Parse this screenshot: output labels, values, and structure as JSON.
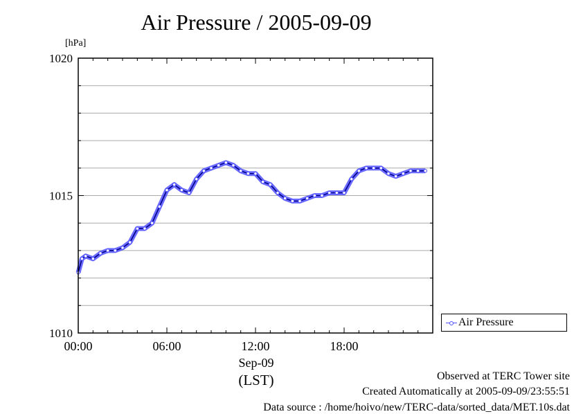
{
  "title": "Air Pressure / 2005-09-09",
  "unit": "[hPa]",
  "x_date_label": "Sep-09",
  "x_tz_label": "(LST)",
  "legend": {
    "label": "Air Pressure"
  },
  "footer": {
    "observed": "Observed at TERC Tower site",
    "created": "Created Automatically at 2005-09-09/23:55:51",
    "source": "Data source : /home/hoivo/new/TERC-data/sorted_data/MET.10s.dat"
  },
  "colors": {
    "series": "#5050ff",
    "core": "#000088",
    "grid": "#aaaaaa"
  },
  "chart_data": {
    "type": "line",
    "title": "Air Pressure / 2005-09-09",
    "ylabel": "[hPa]",
    "xlabel": "(LST)",
    "ylim": [
      1010,
      1020
    ],
    "xlim": [
      0,
      24
    ],
    "yticks": [
      1010,
      1015,
      1020
    ],
    "ytick_labels": [
      "1010",
      "1015",
      "1020"
    ],
    "xticks": [
      0,
      6,
      12,
      18
    ],
    "xtick_labels": [
      "00:00",
      "06:00",
      "12:00",
      "18:00"
    ],
    "grid": true,
    "legend_position": "right",
    "series": [
      {
        "name": "Air Pressure",
        "x": [
          0.0,
          0.25,
          0.5,
          1.0,
          1.5,
          2.0,
          2.5,
          3.0,
          3.5,
          4.0,
          4.5,
          5.0,
          5.5,
          6.0,
          6.5,
          7.0,
          7.5,
          8.0,
          8.5,
          9.0,
          9.5,
          10.0,
          10.5,
          11.0,
          11.5,
          12.0,
          12.5,
          13.0,
          13.5,
          14.0,
          14.5,
          15.0,
          15.5,
          16.0,
          16.5,
          17.0,
          17.5,
          18.0,
          18.5,
          19.0,
          19.5,
          20.0,
          20.5,
          21.0,
          21.5,
          22.0,
          22.5,
          23.0,
          23.5
        ],
        "y": [
          1012.2,
          1012.7,
          1012.8,
          1012.7,
          1012.9,
          1013.0,
          1013.0,
          1013.1,
          1013.3,
          1013.8,
          1013.8,
          1014.0,
          1014.6,
          1015.2,
          1015.4,
          1015.2,
          1015.1,
          1015.6,
          1015.9,
          1016.0,
          1016.1,
          1016.2,
          1016.1,
          1015.9,
          1015.8,
          1015.8,
          1015.5,
          1015.4,
          1015.1,
          1014.9,
          1014.8,
          1014.8,
          1014.9,
          1015.0,
          1015.0,
          1015.1,
          1015.1,
          1015.1,
          1015.6,
          1015.9,
          1016.0,
          1016.0,
          1016.0,
          1015.8,
          1015.7,
          1015.8,
          1015.9,
          1015.9,
          1015.9
        ]
      }
    ]
  }
}
